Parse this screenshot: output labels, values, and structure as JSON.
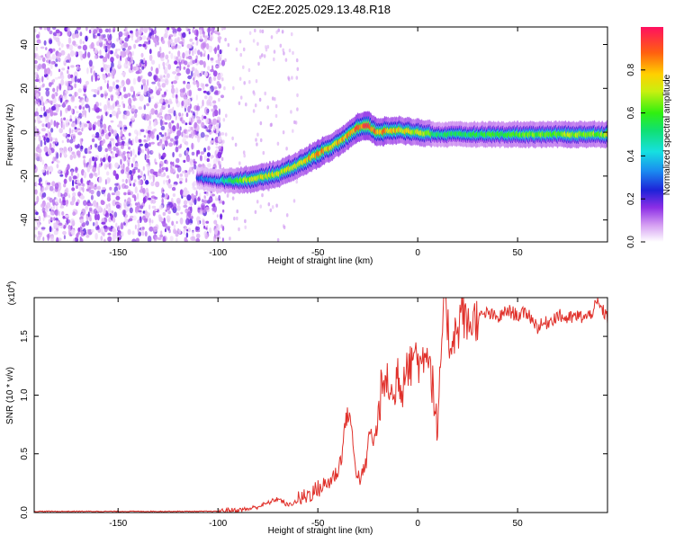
{
  "title": "C2E2.2025.029.13.48.R18",
  "chart_data": [
    {
      "type": "heatmap",
      "xlabel": "Height of straight line (km)",
      "ylabel": "Frequency (Hz)",
      "xlim": [
        -192,
        95
      ],
      "ylim": [
        -50,
        48
      ],
      "x_ticks": [
        -150,
        -100,
        -50,
        0,
        50
      ],
      "y_ticks": [
        -40,
        -20,
        0,
        20,
        40
      ],
      "colorbar": {
        "label": "Normalized spectral amplitude",
        "range": [
          0,
          1
        ],
        "ticks": [
          0.0,
          0.2,
          0.4,
          0.6,
          0.8
        ],
        "tick_labels": [
          "0.0",
          "0.2",
          "0.4",
          "0.6",
          "0.8"
        ]
      },
      "noise_region_x": [
        -192,
        -100
      ],
      "ridge": {
        "x": [
          -110,
          -100,
          -90,
          -80,
          -70,
          -60,
          -50,
          -40,
          -30,
          -25,
          -20,
          -10,
          0,
          10,
          20,
          40,
          60,
          80,
          95
        ],
        "frequency": [
          -21,
          -22,
          -22,
          -21,
          -19,
          -15,
          -10,
          -5,
          2,
          3,
          0,
          1,
          0,
          -1,
          -1,
          -1,
          -1,
          -1,
          -1
        ],
        "amplitude": [
          0.3,
          0.4,
          0.65,
          0.75,
          0.75,
          0.8,
          0.85,
          0.85,
          0.9,
          0.95,
          0.9,
          0.8,
          0.75,
          0.55,
          0.55,
          0.6,
          0.65,
          0.7,
          0.7
        ]
      }
    },
    {
      "type": "line",
      "xlabel": "Height of straight line (km)",
      "ylabel": "SNR (10 * v/v)",
      "y_multiplier": "(x10",
      "y_multiplier_exp": "4",
      "y_multiplier_close": ")",
      "xlim": [
        -192,
        95
      ],
      "ylim": [
        0,
        1.83
      ],
      "x_ticks": [
        -150,
        -100,
        -50,
        0,
        50
      ],
      "y_ticks": [
        0.0,
        0.5,
        1.0,
        1.5
      ],
      "y_tick_labels": [
        "0.0",
        "0.5",
        "1.0",
        "1.5"
      ],
      "series": [
        {
          "color": "#e0302a",
          "x": [
            -192,
            -150,
            -120,
            -105,
            -100,
            -95,
            -90,
            -85,
            -80,
            -75,
            -70,
            -65,
            -60,
            -55,
            -50,
            -45,
            -40,
            -38,
            -36,
            -34,
            -32,
            -30,
            -28,
            -26,
            -24,
            -22,
            -20,
            -19,
            -18,
            -17,
            -16,
            -15,
            -14,
            -12,
            -10,
            -8,
            -6,
            -4,
            -2,
            0,
            2,
            4,
            6,
            8,
            10,
            12,
            14,
            16,
            18,
            20,
            22,
            24,
            26,
            28,
            30,
            35,
            40,
            45,
            50,
            55,
            60,
            65,
            70,
            75,
            80,
            85,
            90,
            95
          ],
          "y": [
            0.01,
            0.01,
            0.01,
            0.01,
            0.01,
            0.02,
            0.02,
            0.03,
            0.05,
            0.08,
            0.12,
            0.06,
            0.1,
            0.15,
            0.2,
            0.25,
            0.35,
            0.5,
            0.8,
            0.85,
            0.5,
            0.3,
            0.3,
            0.4,
            0.7,
            0.6,
            0.75,
            0.95,
            1.07,
            1.0,
            1.2,
            1.05,
            1.1,
            0.9,
            1.25,
            1.0,
            1.35,
            1.2,
            1.4,
            1.3,
            1.25,
            1.45,
            1.3,
            1.0,
            0.6,
            1.5,
            1.83,
            1.4,
            1.55,
            1.5,
            1.78,
            1.6,
            1.6,
            1.65,
            1.65,
            1.7,
            1.65,
            1.72,
            1.68,
            1.7,
            1.58,
            1.62,
            1.68,
            1.65,
            1.67,
            1.66,
            1.78,
            1.66
          ]
        }
      ]
    }
  ]
}
